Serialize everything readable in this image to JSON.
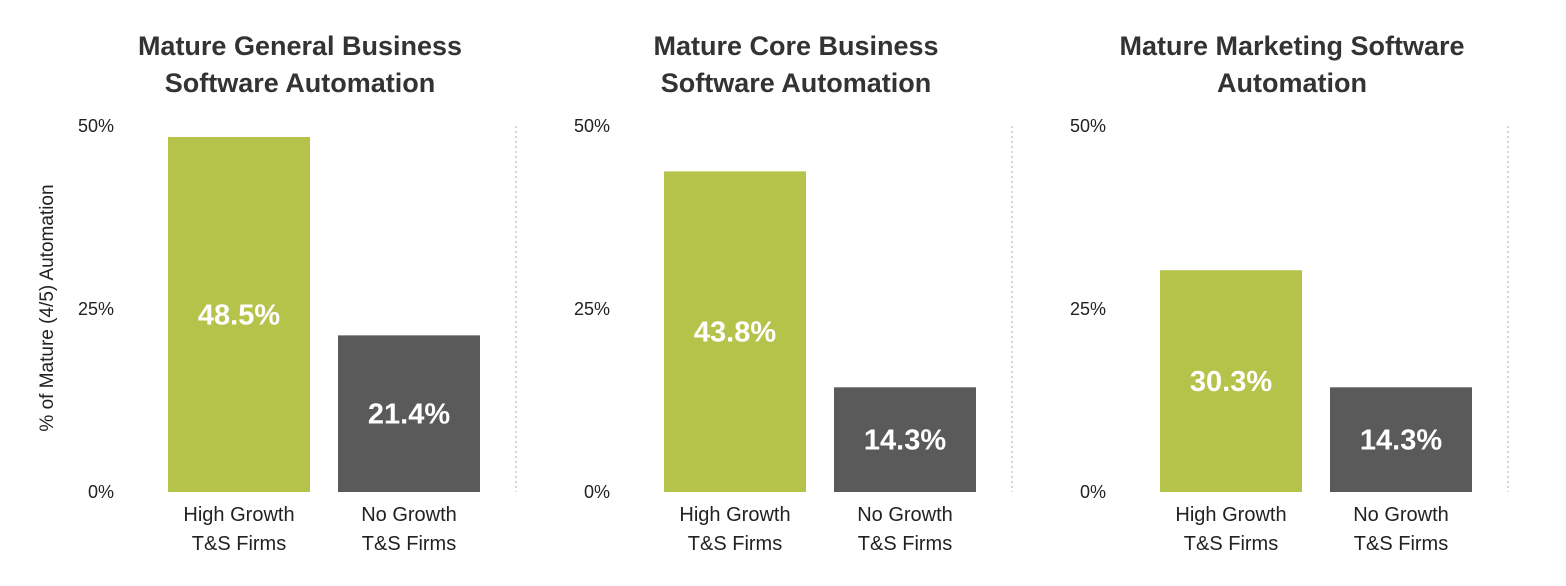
{
  "y_axis_label": "% of Mature (4/5) Automation",
  "colors": {
    "high_growth": "#b5c34a",
    "no_growth": "#5a5a5a",
    "gridline": "#bbbbbb"
  },
  "chart_data": [
    {
      "type": "bar",
      "title_lines": [
        "Mature General Business",
        "Software Automation"
      ],
      "categories": [
        [
          "High Growth",
          "T&S Firms"
        ],
        [
          "No Growth",
          "T&S Firms"
        ]
      ],
      "values": [
        48.5,
        21.4
      ],
      "value_labels": [
        "48.5%",
        "21.4%"
      ],
      "ylim": [
        0,
        50
      ],
      "yticks": [
        "0%",
        "25%",
        "50%"
      ],
      "ytick_values": [
        0,
        25,
        50
      ],
      "ylabel": "% of Mature (4/5) Automation"
    },
    {
      "type": "bar",
      "title_lines": [
        "Mature Core Business",
        "Software Automation"
      ],
      "categories": [
        [
          "High Growth",
          "T&S Firms"
        ],
        [
          "No Growth",
          "T&S Firms"
        ]
      ],
      "values": [
        43.8,
        14.3
      ],
      "value_labels": [
        "43.8%",
        "14.3%"
      ],
      "ylim": [
        0,
        50
      ],
      "yticks": [
        "0%",
        "25%",
        "50%"
      ],
      "ytick_values": [
        0,
        25,
        50
      ]
    },
    {
      "type": "bar",
      "title_lines": [
        "Mature Marketing Software",
        "Automation"
      ],
      "categories": [
        [
          "High Growth",
          "T&S Firms"
        ],
        [
          "No Growth",
          "T&S Firms"
        ]
      ],
      "values": [
        30.3,
        14.3
      ],
      "value_labels": [
        "30.3%",
        "14.3%"
      ],
      "ylim": [
        0,
        50
      ],
      "yticks": [
        "0%",
        "25%",
        "50%"
      ],
      "ytick_values": [
        0,
        25,
        50
      ]
    }
  ]
}
